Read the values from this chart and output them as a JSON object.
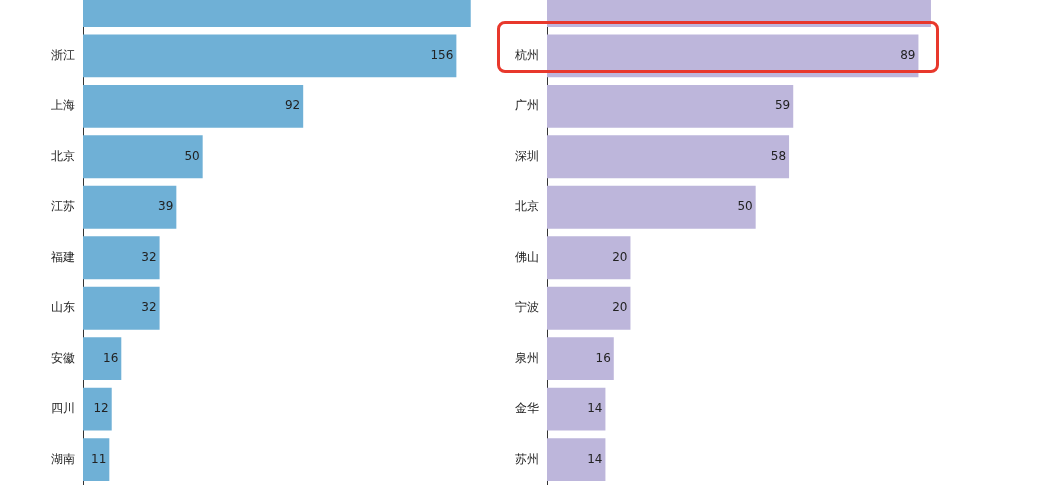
{
  "chart_data": [
    {
      "type": "bar",
      "orientation": "horizontal",
      "categories": [
        null,
        "浙江",
        "上海",
        "北京",
        "江苏",
        "福建",
        "山东",
        "安徽",
        "四川",
        "湖南"
      ],
      "values": [
        162,
        156,
        92,
        50,
        39,
        32,
        32,
        16,
        12,
        11
      ],
      "value_labels": [
        null,
        "156",
        "92",
        "50",
        "39",
        "32",
        "32",
        "16",
        "12",
        "11"
      ],
      "color": "#6fb0d6",
      "tick_labels": "y",
      "grid": false,
      "legend": false
    },
    {
      "type": "bar",
      "orientation": "horizontal",
      "categories": [
        null,
        "杭州",
        "广州",
        "深圳",
        "北京",
        "佛山",
        "宁波",
        "泉州",
        "金华",
        "苏州"
      ],
      "values": [
        92,
        89,
        59,
        58,
        50,
        20,
        20,
        16,
        14,
        14
      ],
      "value_labels": [
        null,
        "89",
        "59",
        "58",
        "50",
        "20",
        "20",
        "16",
        "14",
        "14"
      ],
      "color": "#bdb6db",
      "tick_labels": "y",
      "grid": false,
      "legend": false
    }
  ]
}
